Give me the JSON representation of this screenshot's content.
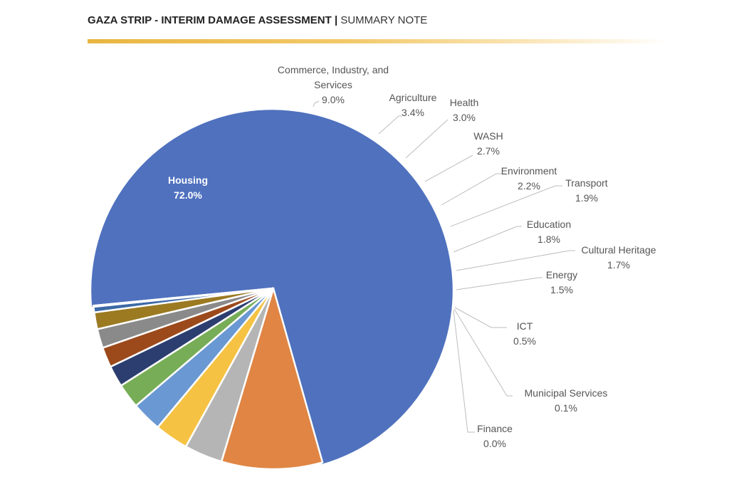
{
  "header": {
    "title_bold": "GAZA STRIP - INTERIM DAMAGE ASSESSMENT",
    "separator": "|",
    "title_light": "SUMMARY NOTE",
    "rule_color": "#e8b640"
  },
  "chart_data": {
    "type": "pie",
    "title": "",
    "slices": [
      {
        "label": "Housing",
        "value_label": "72.0%",
        "value": 72.0,
        "color": "#4f71be",
        "exploded": true,
        "label_inside": true
      },
      {
        "label": "Commerce, Industry, and Services",
        "label_lines": [
          "Commerce, Industry, and",
          "Services"
        ],
        "value_label": "9.0%",
        "value": 9.0,
        "color": "#e08544"
      },
      {
        "label": "Agriculture",
        "value_label": "3.4%",
        "value": 3.4,
        "color": "#b5b5b5"
      },
      {
        "label": "Health",
        "value_label": "3.0%",
        "value": 3.0,
        "color": "#f5c243"
      },
      {
        "label": "WASH",
        "value_label": "2.7%",
        "value": 2.7,
        "color": "#6a98d2"
      },
      {
        "label": "Environment",
        "value_label": "2.2%",
        "value": 2.2,
        "color": "#77ad56"
      },
      {
        "label": "Transport",
        "value_label": "1.9%",
        "value": 1.9,
        "color": "#2c3e70"
      },
      {
        "label": "Education",
        "value_label": "1.8%",
        "value": 1.8,
        "color": "#9c4a1c"
      },
      {
        "label": "Cultural Heritage",
        "value_label": "1.7%",
        "value": 1.7,
        "color": "#8a8a8a"
      },
      {
        "label": "Energy",
        "value_label": "1.5%",
        "value": 1.5,
        "color": "#9b7a22"
      },
      {
        "label": "ICT",
        "value_label": "0.5%",
        "value": 0.5,
        "color": "#3c6aa6"
      },
      {
        "label": "Municipal Services",
        "value_label": "0.1%",
        "value": 0.1,
        "color": "#5a7a3a"
      },
      {
        "label": "Finance",
        "value_label": "0.0%",
        "value": 0.0,
        "color": "#2a3c60"
      }
    ]
  }
}
